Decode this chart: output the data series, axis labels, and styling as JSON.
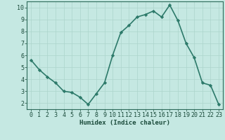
{
  "x": [
    0,
    1,
    2,
    3,
    4,
    5,
    6,
    7,
    8,
    9,
    10,
    11,
    12,
    13,
    14,
    15,
    16,
    17,
    18,
    19,
    20,
    21,
    22,
    23
  ],
  "y": [
    5.6,
    4.8,
    4.2,
    3.7,
    3.0,
    2.9,
    2.5,
    1.9,
    2.8,
    3.7,
    6.0,
    7.9,
    8.5,
    9.2,
    9.4,
    9.7,
    9.2,
    10.2,
    8.9,
    7.0,
    5.8,
    3.7,
    3.5,
    1.9
  ],
  "line_color": "#2d7a6a",
  "marker": "D",
  "marker_size": 2.2,
  "bg_color": "#c5e8e2",
  "grid_color": "#acd4cc",
  "xlabel": "Humidex (Indice chaleur)",
  "xlim": [
    -0.5,
    23.5
  ],
  "ylim": [
    1.5,
    10.5
  ],
  "yticks": [
    2,
    3,
    4,
    5,
    6,
    7,
    8,
    9,
    10
  ],
  "xticks": [
    0,
    1,
    2,
    3,
    4,
    5,
    6,
    7,
    8,
    9,
    10,
    11,
    12,
    13,
    14,
    15,
    16,
    17,
    18,
    19,
    20,
    21,
    22,
    23
  ],
  "xlabel_fontsize": 6.5,
  "tick_fontsize": 6.0,
  "linewidth": 1.2,
  "tick_color": "#1a4a3a",
  "spine_color": "#2d6a5a"
}
